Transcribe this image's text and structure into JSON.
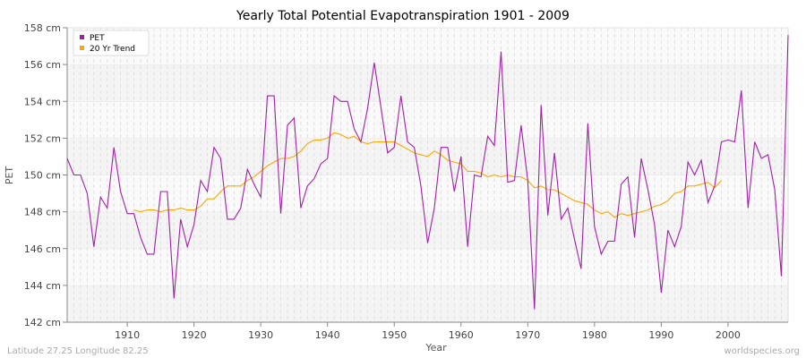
{
  "chart_data": {
    "type": "line",
    "title": "Yearly Total Potential Evapotranspiration 1901 - 2009",
    "xlabel": "Year",
    "ylabel": "PET",
    "xlim": [
      1901,
      2009
    ],
    "ylim": [
      142,
      158
    ],
    "y_unit": "cm",
    "x_ticks": [
      1910,
      1920,
      1930,
      1940,
      1950,
      1960,
      1970,
      1980,
      1990,
      2000
    ],
    "y_ticks": [
      "142 cm",
      "144 cm",
      "146 cm",
      "148 cm",
      "150 cm",
      "152 cm",
      "154 cm",
      "156 cm",
      "158 cm"
    ],
    "y_tick_values": [
      142,
      144,
      146,
      148,
      150,
      152,
      154,
      156,
      158
    ],
    "grid": true,
    "legend_position": "top-left",
    "series": [
      {
        "name": "PET",
        "color": "#a020a8",
        "x_start": 1901,
        "values": [
          150.9,
          150.0,
          150.0,
          149.0,
          146.1,
          148.8,
          148.2,
          151.5,
          149.1,
          147.9,
          147.9,
          146.6,
          145.7,
          145.7,
          149.1,
          149.1,
          143.3,
          147.6,
          146.1,
          147.3,
          149.7,
          149.1,
          151.5,
          150.9,
          147.6,
          147.6,
          148.2,
          150.3,
          149.5,
          148.8,
          154.3,
          154.3,
          147.9,
          152.7,
          153.1,
          148.2,
          149.4,
          149.8,
          150.6,
          150.9,
          154.3,
          154.0,
          154.0,
          152.5,
          151.8,
          153.6,
          156.1,
          153.7,
          151.2,
          151.5,
          154.3,
          151.8,
          151.5,
          149.4,
          146.3,
          148.2,
          151.5,
          151.5,
          149.1,
          151.0,
          146.1,
          150.0,
          149.9,
          152.1,
          151.6,
          156.7,
          149.6,
          149.7,
          152.7,
          149.7,
          142.7,
          153.8,
          147.8,
          151.2,
          147.6,
          148.2,
          146.5,
          144.9,
          152.8,
          147.2,
          145.7,
          146.4,
          146.4,
          149.5,
          149.9,
          146.6,
          150.9,
          149.2,
          147.3,
          143.6,
          147.0,
          146.1,
          147.2,
          150.7,
          150.0,
          150.8,
          148.5,
          149.4,
          151.8,
          151.9,
          151.8,
          154.6,
          148.2,
          151.8,
          150.9,
          151.1,
          149.2,
          144.5,
          157.6
        ]
      },
      {
        "name": "20 Yr Trend",
        "color": "#ffa500",
        "x_start": 1911,
        "values": [
          148.1,
          148.0,
          148.1,
          148.1,
          148.0,
          148.1,
          148.1,
          148.2,
          148.1,
          148.1,
          148.3,
          148.7,
          148.7,
          149.1,
          149.4,
          149.4,
          149.4,
          149.7,
          149.9,
          150.2,
          150.5,
          150.7,
          150.9,
          150.9,
          151.0,
          151.3,
          151.7,
          151.9,
          151.9,
          152.0,
          152.3,
          152.2,
          152.0,
          152.1,
          151.8,
          151.7,
          151.8,
          151.8,
          151.8,
          151.8,
          151.6,
          151.4,
          151.2,
          151.1,
          151.0,
          151.3,
          151.1,
          150.8,
          150.7,
          150.6,
          150.2,
          150.2,
          150.1,
          149.9,
          150.0,
          149.9,
          150.0,
          149.9,
          149.9,
          149.7,
          149.3,
          149.4,
          149.2,
          149.2,
          149.0,
          148.8,
          148.6,
          148.5,
          148.4,
          148.1,
          147.9,
          148.0,
          147.7,
          147.9,
          147.8,
          147.9,
          148.0,
          148.1,
          148.3,
          148.4,
          148.6,
          149.0,
          149.1,
          149.4,
          149.4,
          149.5,
          149.6,
          149.3,
          149.7
        ]
      }
    ]
  },
  "footer": {
    "location": "Latitude 27.25 Longitude 82.25",
    "source": "worldspecies.org"
  }
}
